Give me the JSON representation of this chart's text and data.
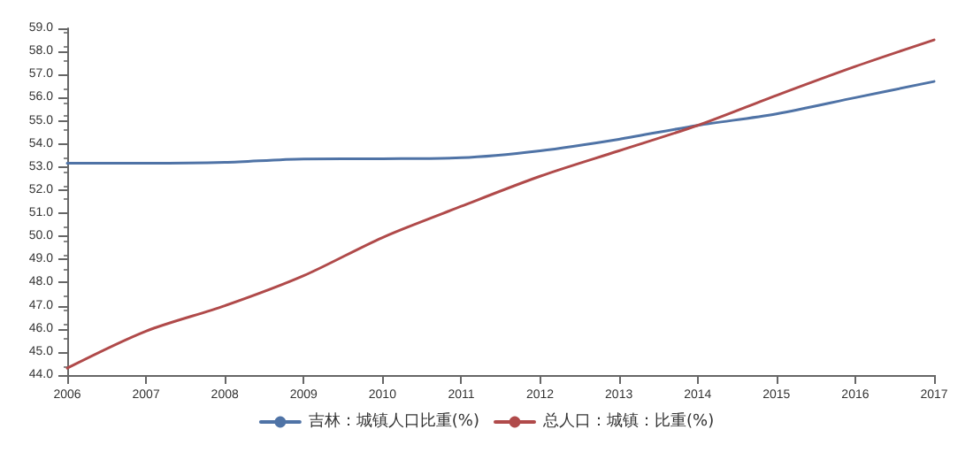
{
  "chart_data": {
    "type": "line",
    "categories": [
      "2006",
      "2007",
      "2008",
      "2009",
      "2010",
      "2011",
      "2012",
      "2013",
      "2014",
      "2015",
      "2016",
      "2017"
    ],
    "series": [
      {
        "name": "吉林：城镇人口比重(%)",
        "color": "#4f73a6",
        "values": [
          53.16,
          53.16,
          53.2,
          53.35,
          53.36,
          53.4,
          53.7,
          54.2,
          54.8,
          55.3,
          56.0,
          56.7
        ]
      },
      {
        "name": "总人口：城镇：比重(%)",
        "color": "#b04a4a",
        "values": [
          44.3,
          45.9,
          47.0,
          48.3,
          49.95,
          51.3,
          52.6,
          53.7,
          54.8,
          56.1,
          57.35,
          58.5
        ]
      }
    ],
    "ylim": [
      44,
      59
    ],
    "yticks": [
      {
        "value": 44,
        "label": "44.0"
      },
      {
        "value": 45,
        "label": "45.0"
      },
      {
        "value": 46,
        "label": "46.0"
      },
      {
        "value": 47,
        "label": "47.0"
      },
      {
        "value": 48,
        "label": "48.0"
      },
      {
        "value": 49,
        "label": "49.0"
      },
      {
        "value": 50,
        "label": "50.0"
      },
      {
        "value": 51,
        "label": "51.0"
      },
      {
        "value": 52,
        "label": "52.0"
      },
      {
        "value": 53,
        "label": "53.0"
      },
      {
        "value": 54,
        "label": "54.0"
      },
      {
        "value": 55,
        "label": "55.0"
      },
      {
        "value": 56,
        "label": "56.0"
      },
      {
        "value": 57,
        "label": "57.0"
      },
      {
        "value": 58,
        "label": "58.0"
      },
      {
        "value": 59,
        "label": "59.0"
      }
    ],
    "grid": false,
    "legend": "bottom",
    "marker": "none",
    "line_style": "solid"
  }
}
